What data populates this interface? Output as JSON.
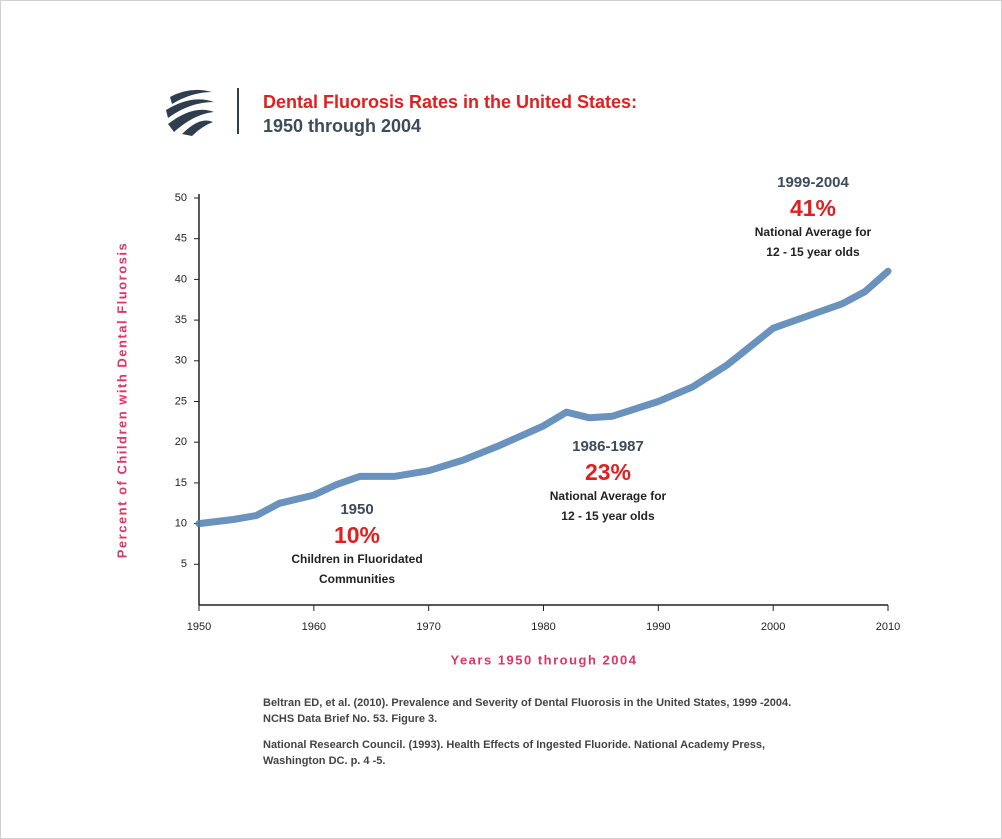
{
  "chart_data": {
    "type": "line",
    "title": "Dental Fluorosis Rates in the United States:",
    "subtitle": "1950 through 2004",
    "y_label": "Percent of Children with Dental Fluorosis",
    "x_label": "Years 1950 through 2004",
    "x": [
      1950,
      1953,
      1955,
      1957,
      1960,
      1962,
      1964,
      1967,
      1970,
      1973,
      1976,
      1980,
      1982,
      1984,
      1986,
      1990,
      1993,
      1996,
      2000,
      2003,
      2006,
      2008,
      2010
    ],
    "series": [
      {
        "color": "#4f7fb0",
        "values": [
          10,
          10.5,
          11,
          12.5,
          13.5,
          14.8,
          15.8,
          15.8,
          16.5,
          17.8,
          19.5,
          22,
          23.7,
          23,
          23.2,
          25,
          26.8,
          29.5,
          34,
          35.5,
          37,
          38.5,
          41
        ]
      }
    ],
    "xlim": [
      1950,
      2010
    ],
    "xticks": [
      1950,
      1960,
      1970,
      1980,
      1990,
      2000,
      2010
    ],
    "ylim": [
      0,
      50
    ],
    "yticks": [
      5,
      10,
      15,
      20,
      25,
      30,
      35,
      40,
      45,
      50
    ],
    "annotations": [
      {
        "heading": "1950",
        "highlight": "10%",
        "lines": [
          "Children in Fluoridated",
          "Communities"
        ]
      },
      {
        "heading": "1986-1987",
        "highlight": "23%",
        "lines": [
          "National Average for",
          "12 - 15 year olds"
        ]
      },
      {
        "heading": "1999-2004",
        "highlight": "41%",
        "lines": [
          "National Average for",
          "12 - 15 year olds"
        ]
      }
    ],
    "references": [
      [
        "Beltran ED, et al. (2010). Prevalence and Severity of Dental Fluorosis in the United States, 1999 -2004.",
        "NCHS Data Brief No. 53. Figure 3."
      ],
      [
        "National Research Council. (1993). Health Effects of Ingested Fluoride. National Academy Press,",
        "Washington DC. p. 4 -5."
      ]
    ]
  }
}
